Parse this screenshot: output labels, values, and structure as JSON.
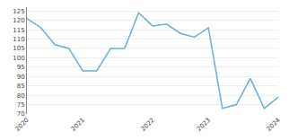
{
  "chart_data": {
    "type": "line",
    "categories": [
      "2020",
      null,
      null,
      null,
      "2021",
      null,
      null,
      null,
      null,
      "2022",
      null,
      null,
      null,
      "2023",
      null,
      null,
      null,
      null,
      "2024"
    ],
    "values": [
      121,
      116,
      107,
      105,
      93,
      93,
      105,
      105,
      124,
      117,
      118,
      113,
      111,
      116,
      73,
      75,
      89,
      73,
      79
    ],
    "color": "#6baed6",
    "ylim": [
      70,
      127
    ],
    "yticks": [
      70,
      75,
      80,
      85,
      90,
      95,
      100,
      105,
      110,
      115,
      120,
      125
    ],
    "grid": true
  }
}
